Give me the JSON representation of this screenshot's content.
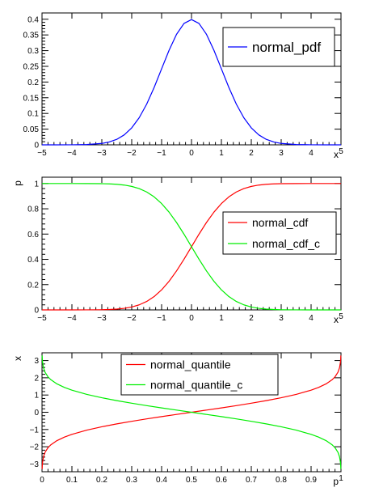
{
  "chart_data": [
    {
      "type": "line",
      "xlabel": "x",
      "ylabel": "",
      "xlim": [
        -5,
        5
      ],
      "ylim": [
        0,
        0.42
      ],
      "x_ticks": [
        -5,
        -4,
        -3,
        -2,
        -1,
        0,
        1,
        2,
        3,
        4,
        5
      ],
      "x_tick_labels": [
        "−5",
        "−4",
        "−3",
        "−2",
        "−1",
        "0",
        "1",
        "2",
        "3",
        "4",
        "5"
      ],
      "y_ticks": [
        0,
        0.05,
        0.1,
        0.15,
        0.2,
        0.25,
        0.3,
        0.35,
        0.4
      ],
      "y_tick_labels": [
        "0",
        "0.05",
        "0.1",
        "0.15",
        "0.2",
        "0.25",
        "0.3",
        "0.35",
        "0.4"
      ],
      "grid": false,
      "legend_position": "top-right",
      "legend_font_size": "large",
      "series": [
        {
          "name": "normal_pdf",
          "color": "#0000ff",
          "x": [
            -5,
            -4.5,
            -4,
            -3.5,
            -3,
            -2.75,
            -2.5,
            -2.25,
            -2,
            -1.75,
            -1.5,
            -1.25,
            -1,
            -0.75,
            -0.5,
            -0.25,
            0,
            0.25,
            0.5,
            0.75,
            1,
            1.25,
            1.5,
            1.75,
            2,
            2.25,
            2.5,
            2.75,
            3,
            3.5,
            4,
            4.5,
            5
          ],
          "y": [
            1.5e-06,
            1.6e-05,
            0.000134,
            0.000873,
            0.00443,
            0.00909,
            0.0175,
            0.0317,
            0.054,
            0.0863,
            0.1295,
            0.1826,
            0.242,
            0.3011,
            0.3521,
            0.3867,
            0.3989,
            0.3867,
            0.3521,
            0.3011,
            0.242,
            0.1826,
            0.1295,
            0.0863,
            0.054,
            0.0317,
            0.0175,
            0.00909,
            0.00443,
            0.000873,
            0.000134,
            1.6e-05,
            1.5e-06
          ]
        }
      ]
    },
    {
      "type": "line",
      "xlabel": "x",
      "ylabel": "p",
      "xlim": [
        -5,
        5
      ],
      "ylim": [
        0,
        1.05
      ],
      "x_ticks": [
        -5,
        -4,
        -3,
        -2,
        -1,
        0,
        1,
        2,
        3,
        4,
        5
      ],
      "x_tick_labels": [
        "−5",
        "−4",
        "−3",
        "−2",
        "−1",
        "0",
        "1",
        "2",
        "3",
        "4",
        "5"
      ],
      "y_ticks": [
        0,
        0.2,
        0.4,
        0.6,
        0.8,
        1
      ],
      "y_tick_labels": [
        "0",
        "0.2",
        "0.4",
        "0.6",
        "0.8",
        "1"
      ],
      "grid": false,
      "legend_position": "right",
      "series": [
        {
          "name": "normal_cdf",
          "color": "#ff0000",
          "x": [
            -5,
            -4.5,
            -4,
            -3.5,
            -3,
            -2.75,
            -2.5,
            -2.25,
            -2,
            -1.75,
            -1.5,
            -1.25,
            -1,
            -0.75,
            -0.5,
            -0.25,
            0,
            0.25,
            0.5,
            0.75,
            1,
            1.25,
            1.5,
            1.75,
            2,
            2.25,
            2.5,
            2.75,
            3,
            3.5,
            4,
            4.5,
            5
          ],
          "y": [
            0,
            3.4e-06,
            3.17e-05,
            0.000233,
            0.00135,
            0.00298,
            0.00621,
            0.0122,
            0.0228,
            0.0401,
            0.0668,
            0.1056,
            0.1587,
            0.2266,
            0.3085,
            0.4013,
            0.5,
            0.5987,
            0.6915,
            0.7734,
            0.8413,
            0.8944,
            0.9332,
            0.9599,
            0.9772,
            0.9878,
            0.9938,
            0.997,
            0.99865,
            0.99977,
            0.99997,
            1,
            1
          ]
        },
        {
          "name": "normal_cdf_c",
          "color": "#00ee00",
          "x": [
            -5,
            -4.5,
            -4,
            -3.5,
            -3,
            -2.75,
            -2.5,
            -2.25,
            -2,
            -1.75,
            -1.5,
            -1.25,
            -1,
            -0.75,
            -0.5,
            -0.25,
            0,
            0.25,
            0.5,
            0.75,
            1,
            1.25,
            1.5,
            1.75,
            2,
            2.25,
            2.5,
            2.75,
            3,
            3.5,
            4,
            4.5,
            5
          ],
          "y": [
            1,
            1,
            0.99997,
            0.99977,
            0.99865,
            0.997,
            0.9938,
            0.9878,
            0.9772,
            0.9599,
            0.9332,
            0.8944,
            0.8413,
            0.7734,
            0.6915,
            0.5987,
            0.5,
            0.4013,
            0.3085,
            0.2266,
            0.1587,
            0.1056,
            0.0668,
            0.0401,
            0.0228,
            0.0122,
            0.00621,
            0.00298,
            0.00135,
            0.000233,
            3.17e-05,
            3.4e-06,
            0
          ]
        }
      ]
    },
    {
      "type": "line",
      "xlabel": "p",
      "ylabel": "x",
      "xlim": [
        0,
        1
      ],
      "ylim": [
        -3.45,
        3.45
      ],
      "x_ticks": [
        0,
        0.1,
        0.2,
        0.3,
        0.4,
        0.5,
        0.6,
        0.7,
        0.8,
        0.9,
        1
      ],
      "x_tick_labels": [
        "0",
        "0.1",
        "0.2",
        "0.3",
        "0.4",
        "0.5",
        "0.6",
        "0.7",
        "0.8",
        "0.9",
        "1"
      ],
      "y_ticks": [
        -3,
        -2,
        -1,
        0,
        1,
        2,
        3
      ],
      "y_tick_labels": [
        "−3",
        "−2",
        "−1",
        "0",
        "1",
        "2",
        "3"
      ],
      "grid": false,
      "legend_position": "top-center",
      "series": [
        {
          "name": "normal_quantile",
          "color": "#ff0000",
          "x": [
            0.0005,
            0.001,
            0.002,
            0.005,
            0.01,
            0.02,
            0.03,
            0.05,
            0.075,
            0.1,
            0.15,
            0.2,
            0.25,
            0.3,
            0.35,
            0.4,
            0.45,
            0.5,
            0.55,
            0.6,
            0.65,
            0.7,
            0.75,
            0.8,
            0.85,
            0.9,
            0.925,
            0.95,
            0.97,
            0.98,
            0.99,
            0.995,
            0.998,
            0.999,
            0.9995
          ],
          "y": [
            -3.29,
            -3.09,
            -2.88,
            -2.576,
            -2.326,
            -2.054,
            -1.881,
            -1.645,
            -1.44,
            -1.282,
            -1.036,
            -0.842,
            -0.674,
            -0.524,
            -0.385,
            -0.253,
            -0.126,
            0,
            0.126,
            0.253,
            0.385,
            0.524,
            0.674,
            0.842,
            1.036,
            1.282,
            1.44,
            1.645,
            1.881,
            2.054,
            2.326,
            2.576,
            2.88,
            3.09,
            3.29
          ]
        },
        {
          "name": "normal_quantile_c",
          "color": "#00ee00",
          "x": [
            0.0005,
            0.001,
            0.002,
            0.005,
            0.01,
            0.02,
            0.03,
            0.05,
            0.075,
            0.1,
            0.15,
            0.2,
            0.25,
            0.3,
            0.35,
            0.4,
            0.45,
            0.5,
            0.55,
            0.6,
            0.65,
            0.7,
            0.75,
            0.8,
            0.85,
            0.9,
            0.925,
            0.95,
            0.97,
            0.98,
            0.99,
            0.995,
            0.998,
            0.999,
            0.9995
          ],
          "y": [
            3.29,
            3.09,
            2.88,
            2.576,
            2.326,
            2.054,
            1.881,
            1.645,
            1.44,
            1.282,
            1.036,
            0.842,
            0.674,
            0.524,
            0.385,
            0.253,
            0.126,
            0,
            -0.126,
            -0.253,
            -0.385,
            -0.524,
            -0.674,
            -0.842,
            -1.036,
            -1.282,
            -1.44,
            -1.645,
            -1.881,
            -2.054,
            -2.326,
            -2.576,
            -2.88,
            -3.09,
            -3.29
          ]
        }
      ]
    }
  ]
}
